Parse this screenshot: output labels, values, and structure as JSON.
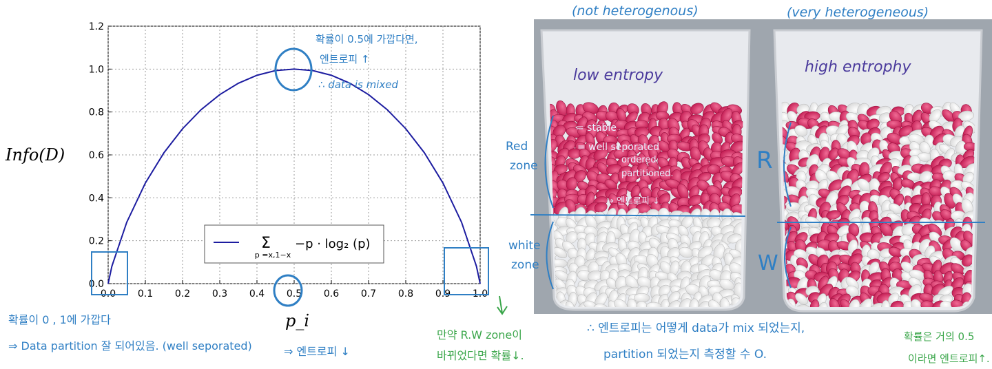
{
  "chart_data": {
    "type": "line",
    "title": "",
    "xlabel": "p_i",
    "ylabel": "Info(D)",
    "xlim": [
      0.0,
      1.0
    ],
    "ylim": [
      0.0,
      1.2
    ],
    "x_ticks": [
      "0.0",
      "0.1",
      "0.2",
      "0.3",
      "0.4",
      "0.5",
      "0.6",
      "0.7",
      "0.8",
      "0.9",
      "1.0"
    ],
    "y_ticks": [
      "0.0",
      "0.2",
      "0.4",
      "0.6",
      "0.8",
      "1.0",
      "1.2"
    ],
    "grid": true,
    "legend_placement": "bottom-center",
    "series": [
      {
        "name": "Σ_{p=x,1−x} −p · log2(p)",
        "color": "#1c1ca0",
        "x": [
          0.0,
          0.01,
          0.05,
          0.1,
          0.15,
          0.2,
          0.25,
          0.3,
          0.35,
          0.4,
          0.45,
          0.5,
          0.55,
          0.6,
          0.65,
          0.7,
          0.75,
          0.8,
          0.85,
          0.9,
          0.95,
          0.99,
          1.0
        ],
        "y": [
          0.0,
          0.081,
          0.286,
          0.469,
          0.61,
          0.722,
          0.811,
          0.881,
          0.934,
          0.971,
          0.993,
          1.0,
          0.993,
          0.971,
          0.934,
          0.881,
          0.811,
          0.722,
          0.61,
          0.469,
          0.286,
          0.081,
          0.0
        ]
      }
    ]
  },
  "legend": {
    "sum_symbol": "Σ",
    "sum_subscript": "p =x,1−x",
    "expression": "−p · log₂ (p)"
  },
  "axis_labels": {
    "y": "Info(D)",
    "x": "p_i"
  },
  "annotations": {
    "top_note_1": "확률이 0.5에 가깝다면,",
    "top_note_2": "엔트로피 ↑",
    "top_note_3": "∴ data is mixed",
    "bottom_left_1": "확률이 0 , 1에 가깝다",
    "bottom_left_2": "⇒ Data partition 잘 되어있음. (well seporated)",
    "bottom_mid": "⇒ 엔트로피 ↓",
    "bottom_center_1": "만약 R.W zone이",
    "bottom_center_2": "바뀌었다면 확률↓.",
    "bottom_right_1": "∴ 엔트로피는 어떻게 data가 mix 되었는지,",
    "bottom_right_2": "partition 되었는지 측정할 수 O.",
    "far_right_1": "확률은 거의 0.5",
    "far_right_2": "이라면 엔트로피↑."
  },
  "photo_labels": {
    "left_header": "(not heterogenous)",
    "right_header": "(very heterogeneous)",
    "left_title": "low entropy",
    "right_title": "high entrophy",
    "red_zone_1": "Red",
    "red_zone_2": "zone",
    "white_zone_1": "white",
    "white_zone_2": "zone",
    "stable": "= stable",
    "well": "= well seporated",
    "ordered": "ordered",
    "partitioned": "partitioned.",
    "entropy_down": "⇒ 엔트로피 ↓",
    "R": "R",
    "W": "W"
  }
}
